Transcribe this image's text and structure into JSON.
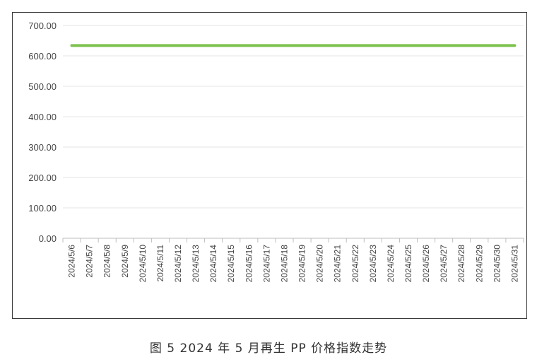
{
  "caption": "图 5  2024 年 5 月再生 PP 价格指数走势",
  "chart_data": {
    "type": "line",
    "title": "",
    "xlabel": "",
    "ylabel": "",
    "ylim": [
      0,
      700
    ],
    "yticks": [
      "0.00",
      "100.00",
      "200.00",
      "300.00",
      "400.00",
      "500.00",
      "600.00",
      "700.00"
    ],
    "grid": true,
    "legend": "none",
    "categories": [
      "2024/5/6",
      "2024/5/7",
      "2024/5/8",
      "2024/5/9",
      "2024/5/10",
      "2024/5/11",
      "2024/5/12",
      "2024/5/13",
      "2024/5/14",
      "2024/5/15",
      "2024/5/16",
      "2024/5/17",
      "2024/5/18",
      "2024/5/19",
      "2024/5/20",
      "2024/5/21",
      "2024/5/22",
      "2024/5/23",
      "2024/5/24",
      "2024/5/25",
      "2024/5/26",
      "2024/5/27",
      "2024/5/28",
      "2024/5/29",
      "2024/5/30",
      "2024/5/31"
    ],
    "series": [
      {
        "color": "#7cc24e",
        "values": [
          634,
          634,
          634,
          634,
          634,
          634,
          634,
          634,
          634,
          634,
          634,
          634,
          634,
          634,
          634,
          634,
          634,
          634,
          634,
          634,
          634,
          634,
          634,
          634,
          634,
          634
        ]
      }
    ]
  }
}
